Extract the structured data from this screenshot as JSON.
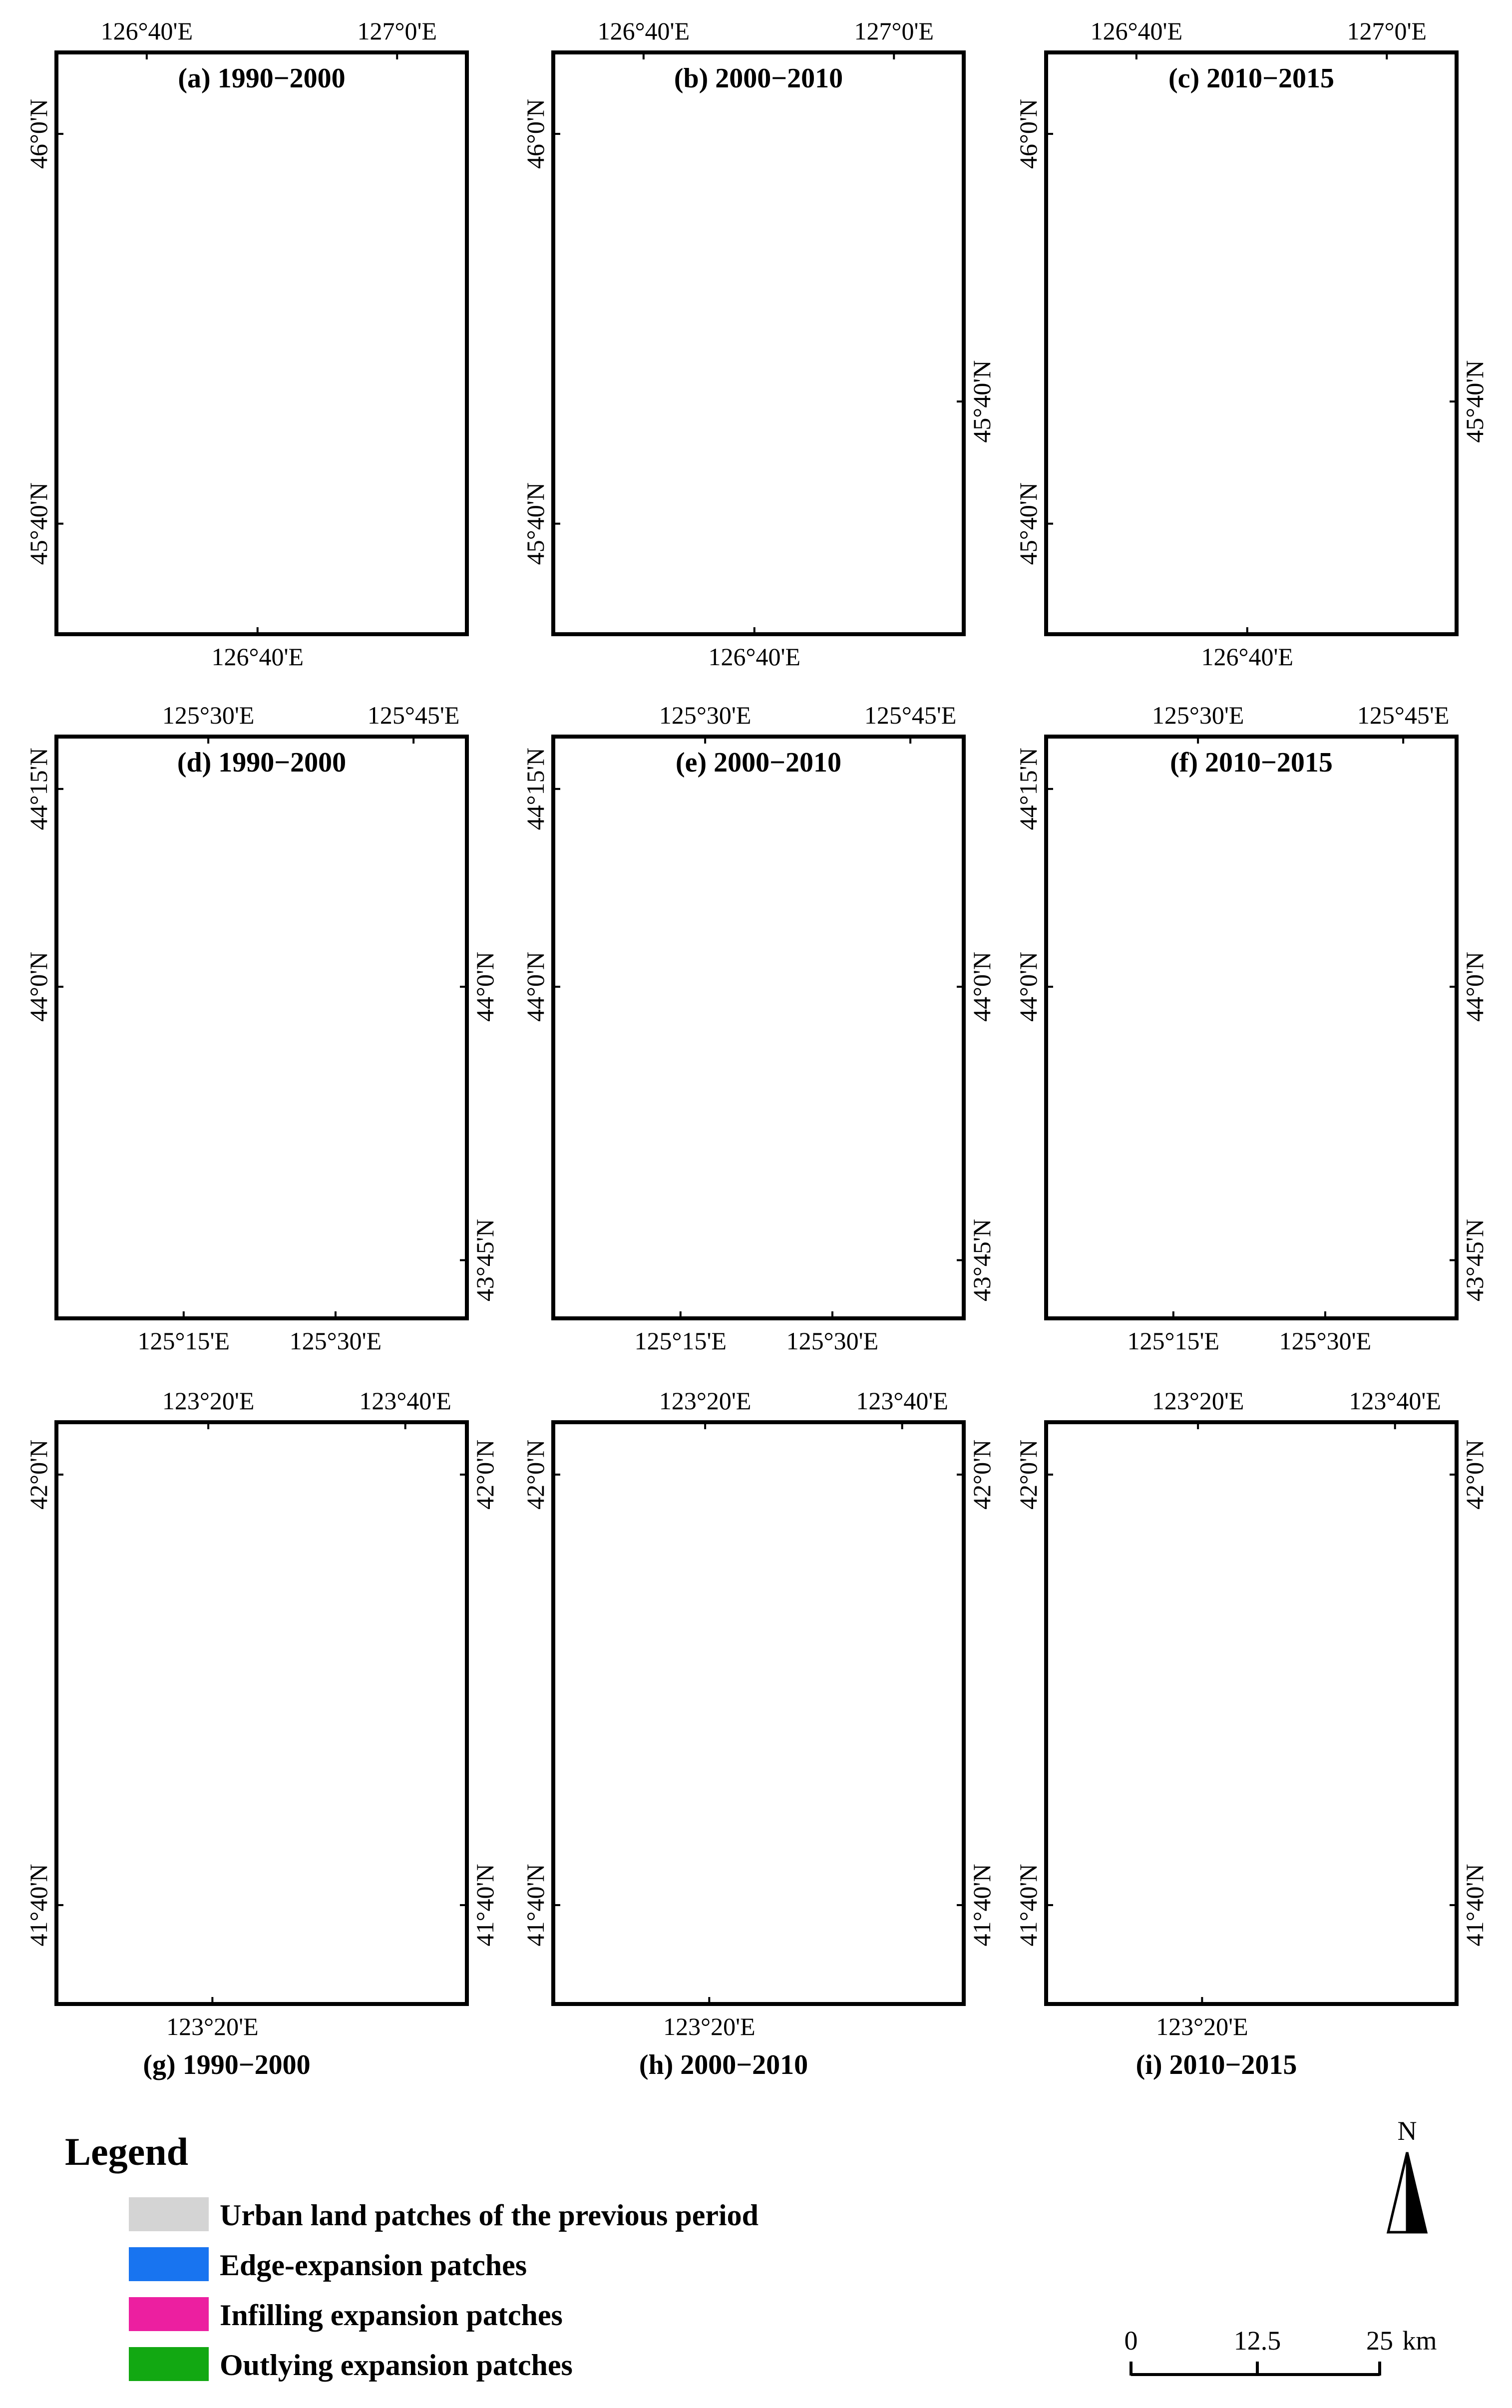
{
  "colors": {
    "urban": "#d4d4d4",
    "edge": "#1874f0",
    "infill": "#ec1fa0",
    "outlying": "#12a812"
  },
  "panels": [
    {
      "title": "(a) 1990−2000",
      "top_x": [
        "126°40'E",
        "127°0'E"
      ],
      "bottom_x": [
        "126°40'E"
      ],
      "left_y": [
        "46°0'N",
        "45°40'N"
      ],
      "right_y": []
    },
    {
      "title": "(b) 2000−2010",
      "top_x": [
        "126°40'E",
        "127°0'E"
      ],
      "bottom_x": [
        "126°40'E"
      ],
      "left_y": [
        "46°0'N",
        "45°40'N"
      ],
      "right_y": [
        "45°40'N"
      ]
    },
    {
      "title": "(c) 2010−2015",
      "top_x": [
        "126°40'E",
        "127°0'E"
      ],
      "bottom_x": [
        "126°40'E"
      ],
      "left_y": [
        "46°0'N",
        "45°40'N"
      ],
      "right_y": [
        "45°40'N"
      ]
    },
    {
      "title": "(d) 1990−2000",
      "top_x": [
        "125°30'E",
        "125°45'E"
      ],
      "bottom_x": [
        "125°15'E",
        "125°30'E"
      ],
      "left_y": [
        "44°15'N",
        "44°0'N"
      ],
      "right_y": [
        "44°0'N",
        "43°45'N"
      ]
    },
    {
      "title": "(e) 2000−2010",
      "top_x": [
        "125°30'E",
        "125°45'E"
      ],
      "bottom_x": [
        "125°15'E",
        "125°30'E"
      ],
      "left_y": [
        "44°15'N",
        "44°0'N"
      ],
      "right_y": [
        "44°0'N",
        "43°45'N"
      ]
    },
    {
      "title": "(f) 2010−2015",
      "top_x": [
        "125°30'E",
        "125°45'E"
      ],
      "bottom_x": [
        "125°15'E",
        "125°30'E"
      ],
      "left_y": [
        "44°15'N",
        "44°0'N"
      ],
      "right_y": [
        "44°0'N",
        "43°45'N"
      ]
    },
    {
      "title": "(g) 1990−2000",
      "top_x": [
        "123°20'E",
        "123°40'E"
      ],
      "bottom_x": [
        "123°20'E"
      ],
      "left_y": [
        "42°0'N",
        "41°40'N"
      ],
      "right_y": [
        "42°0'N",
        "41°40'N"
      ]
    },
    {
      "title": "(h) 2000−2010",
      "top_x": [
        "123°20'E",
        "123°40'E"
      ],
      "bottom_x": [
        "123°20'E"
      ],
      "left_y": [
        "42°0'N",
        "41°40'N"
      ],
      "right_y": [
        "42°0'N",
        "41°40'N"
      ]
    },
    {
      "title": "(i) 2010−2015",
      "top_x": [
        "123°20'E",
        "123°40'E"
      ],
      "bottom_x": [
        "123°20'E"
      ],
      "left_y": [
        "42°0'N",
        "41°40'N"
      ],
      "right_y": [
        "42°0'N",
        "41°40'N"
      ]
    }
  ],
  "legend": {
    "title": "Legend",
    "items": [
      {
        "label": "Urban land patches of the previous period",
        "color_key": "urban"
      },
      {
        "label": "Edge-expansion patches",
        "color_key": "edge"
      },
      {
        "label": "Infilling expansion patches",
        "color_key": "infill"
      },
      {
        "label": "Outlying expansion patches",
        "color_key": "outlying"
      }
    ]
  },
  "north_arrow": {
    "label": "N"
  },
  "scale_bar": {
    "ticks": [
      "0",
      "12.5",
      "25"
    ],
    "unit": "km"
  }
}
